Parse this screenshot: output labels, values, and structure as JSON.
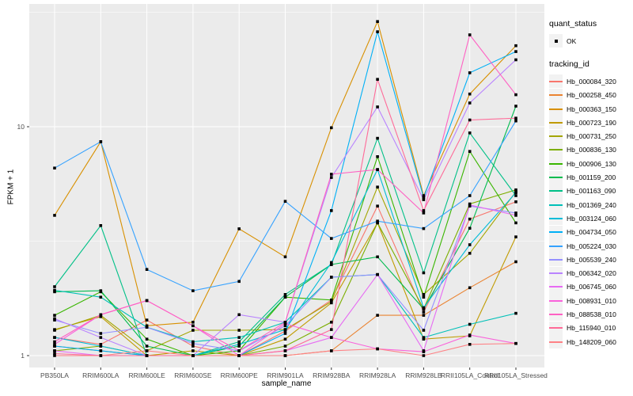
{
  "chart_data": {
    "type": "line",
    "title": "",
    "xlabel": "sample_name",
    "ylabel": "FPKM + 1",
    "y_scale": "log10",
    "y_ticks": [
      1,
      10
    ],
    "y_minor_ticks": [
      3.162,
      31.62
    ],
    "ylim": [
      0.88,
      37
    ],
    "grid": true,
    "colors": {
      "panel_bg": "#EBEBEB",
      "gridline": "#FFFFFF",
      "tick": "#333333",
      "tick_label": "#4D4D4D",
      "point": "#000000",
      "legend_key_bg": "#F2F2F2"
    },
    "categories": [
      "PB350LA",
      "RRIM600LA",
      "RRIM600LE",
      "RRIM600SE",
      "RRIM600PE",
      "RRIM901LA",
      "RRIM928BA",
      "RRIM928LA",
      "RRIM928LB",
      "RRII105LA_Control",
      "RRII105LA_Stressed"
    ],
    "legend": {
      "position": "right",
      "quant_status": {
        "title": "quant_status",
        "items": [
          {
            "label": "OK",
            "marker": "black-point"
          }
        ]
      },
      "tracking_id": {
        "title": "tracking_id"
      }
    },
    "series": [
      {
        "name": "Hb_000084_320",
        "color": "#F8766D",
        "values": [
          1.2,
          1.12,
          1.43,
          1.1,
          1.0,
          1.28,
          1.75,
          4.5,
          1.55,
          3.95,
          4.7
        ]
      },
      {
        "name": "Hb_000258_450",
        "color": "#EA8331",
        "values": [
          1.1,
          1.05,
          1.0,
          1.0,
          1.0,
          1.0,
          1.05,
          1.5,
          1.5,
          1.98,
          2.57
        ]
      },
      {
        "name": "Hb_000363_150",
        "color": "#D89000",
        "values": [
          4.1,
          8.6,
          1.35,
          1.4,
          3.58,
          2.7,
          9.9,
          28.8,
          5.0,
          13.9,
          22.6
        ]
      },
      {
        "name": "Hb_000723_190",
        "color": "#C09B00",
        "values": [
          1.3,
          1.48,
          1.0,
          1.05,
          1.0,
          1.18,
          1.7,
          3.8,
          1.18,
          1.22,
          3.3
        ]
      },
      {
        "name": "Hb_000731_250",
        "color": "#A3A500",
        "values": [
          1.29,
          1.5,
          1.05,
          1.29,
          1.29,
          1.3,
          1.72,
          5.45,
          1.85,
          2.8,
          5.2
        ]
      },
      {
        "name": "Hb_000836_130",
        "color": "#7CAE00",
        "values": [
          1.05,
          1.1,
          1.0,
          1.0,
          1.0,
          1.1,
          1.4,
          3.8,
          1.6,
          4.6,
          5.3
        ]
      },
      {
        "name": "Hb_000906_130",
        "color": "#39B600",
        "values": [
          1.5,
          1.9,
          1.18,
          1.0,
          1.05,
          1.8,
          1.75,
          7.4,
          1.8,
          7.8,
          3.8
        ]
      },
      {
        "name": "Hb_001159_200",
        "color": "#00BB4E",
        "values": [
          1.9,
          1.92,
          1.1,
          1.0,
          1.1,
          1.8,
          2.5,
          2.7,
          1.6,
          3.6,
          12.3
        ]
      },
      {
        "name": "Hb_001163_090",
        "color": "#00C087",
        "values": [
          2.0,
          3.7,
          1.0,
          1.0,
          1.15,
          1.85,
          2.5,
          8.9,
          2.3,
          9.4,
          5.0
        ]
      },
      {
        "name": "Hb_001369_240",
        "color": "#00C0B8",
        "values": [
          1.93,
          1.8,
          1.33,
          1.15,
          1.2,
          1.4,
          2.2,
          2.26,
          1.2,
          1.37,
          1.53
        ]
      },
      {
        "name": "Hb_003124_060",
        "color": "#00BCD8",
        "values": [
          1.2,
          1.1,
          1.0,
          1.0,
          1.12,
          1.3,
          2.55,
          6.5,
          1.62,
          3.05,
          5.15
        ]
      },
      {
        "name": "Hb_004734_050",
        "color": "#00B0F6",
        "values": [
          1.1,
          1.05,
          1.0,
          1.0,
          1.0,
          1.25,
          4.3,
          26.0,
          4.9,
          17.2,
          21.3
        ]
      },
      {
        "name": "Hb_005224_030",
        "color": "#35A2FF",
        "values": [
          6.6,
          8.6,
          2.38,
          1.92,
          2.11,
          4.72,
          3.25,
          3.87,
          3.59,
          5.0,
          10.6
        ]
      },
      {
        "name": "Hb_005539_240",
        "color": "#9590FF",
        "values": [
          1.43,
          1.25,
          1.33,
          1.13,
          1.05,
          1.35,
          2.2,
          2.26,
          1.29,
          4.5,
          4.2
        ]
      },
      {
        "name": "Hb_006342_020",
        "color": "#B983FF",
        "values": [
          1.45,
          1.2,
          1.0,
          1.0,
          1.51,
          1.4,
          6.0,
          12.2,
          4.8,
          12.7,
          19.6
        ]
      },
      {
        "name": "Hb_006745_060",
        "color": "#E76BF3",
        "values": [
          1.05,
          1.0,
          1.0,
          1.0,
          1.0,
          1.05,
          1.2,
          2.26,
          1.05,
          4.55,
          4.1
        ]
      },
      {
        "name": "Hb_008931_010",
        "color": "#FA62DB",
        "values": [
          1.12,
          1.51,
          1.74,
          1.35,
          1.0,
          1.38,
          1.2,
          1.07,
          1.04,
          1.23,
          1.13
        ]
      },
      {
        "name": "Hb_088538_010",
        "color": "#FF61C3",
        "values": [
          1.15,
          1.51,
          1.74,
          1.35,
          1.05,
          1.4,
          6.2,
          6.5,
          4.2,
          25.2,
          13.8
        ]
      },
      {
        "name": "Hb_115940_010",
        "color": "#FF6A98",
        "values": [
          1.02,
          1.0,
          1.0,
          1.0,
          1.0,
          1.05,
          1.3,
          16.1,
          4.3,
          10.7,
          10.9
        ]
      },
      {
        "name": "Hb_148209_060",
        "color": "#FE8185",
        "values": [
          1.0,
          1.0,
          1.05,
          1.0,
          1.0,
          1.0,
          1.05,
          1.07,
          1.0,
          1.12,
          1.13
        ]
      }
    ]
  }
}
